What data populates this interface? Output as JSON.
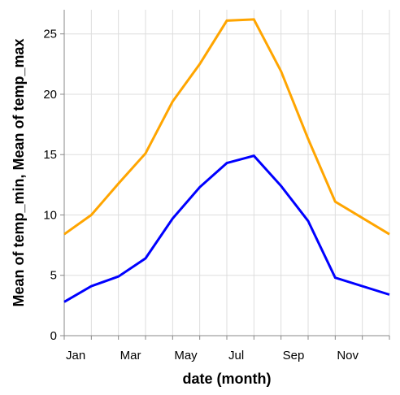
{
  "chart_data": {
    "type": "line",
    "xlabel": "date (month)",
    "ylabel": "Mean of temp_min, Mean of temp_max",
    "x_tick_labels": [
      "Jan",
      "Mar",
      "May",
      "Jul",
      "Sep",
      "Nov"
    ],
    "categories": [
      "Jan",
      "Feb",
      "Mar",
      "Apr",
      "May",
      "Jun",
      "Jul",
      "Aug",
      "Sep",
      "Oct",
      "Nov",
      "Dec"
    ],
    "ylim": [
      0,
      27
    ],
    "y_ticks": [
      0,
      5,
      10,
      15,
      20,
      25
    ],
    "grid": true,
    "series": [
      {
        "color": "#ffa500",
        "values": [
          8.4,
          10.0,
          12.6,
          15.1,
          19.4,
          22.5,
          26.1,
          26.2,
          21.9,
          16.3,
          11.1,
          8.4
        ]
      },
      {
        "color": "#0000ff",
        "values": [
          2.8,
          4.1,
          4.9,
          6.4,
          9.7,
          12.3,
          14.3,
          14.9,
          12.4,
          9.5,
          4.8,
          3.4
        ]
      }
    ]
  }
}
